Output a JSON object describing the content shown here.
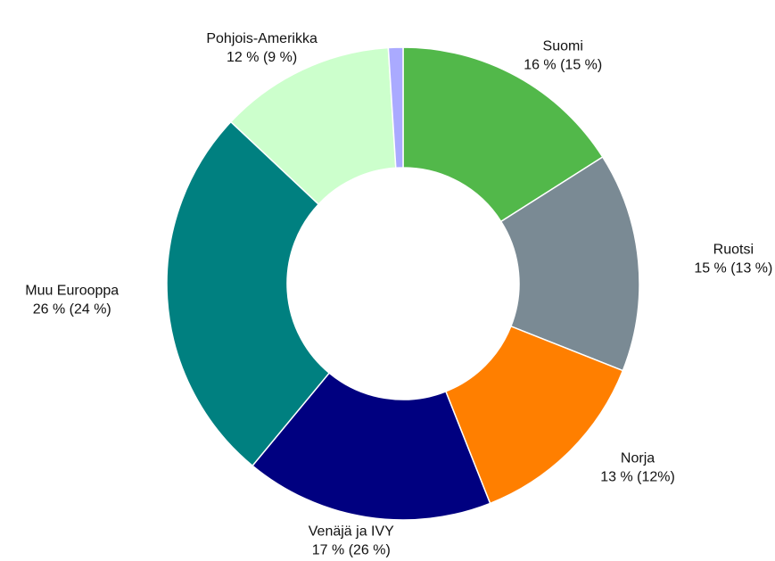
{
  "chart_data": {
    "type": "donut",
    "categories": [
      "Suomi",
      "Ruotsi",
      "Norja",
      "Venäjä ja IVY",
      "Muu Eurooppa",
      "Pohjois-Amerikka",
      null
    ],
    "values": [
      16,
      15,
      13,
      17,
      26,
      12,
      1
    ],
    "value_labels": [
      "16 % (15 %)",
      "15 % (13 %)",
      "13 % (12%)",
      "17 % (26 %)",
      "26 % (24 %)",
      "12 % (9 %)",
      null
    ],
    "colors": [
      "#52b84a",
      "#7a8a94",
      "#ff7f00",
      "#000080",
      "#008080",
      "#ccffcc",
      "#aaaaff"
    ]
  }
}
